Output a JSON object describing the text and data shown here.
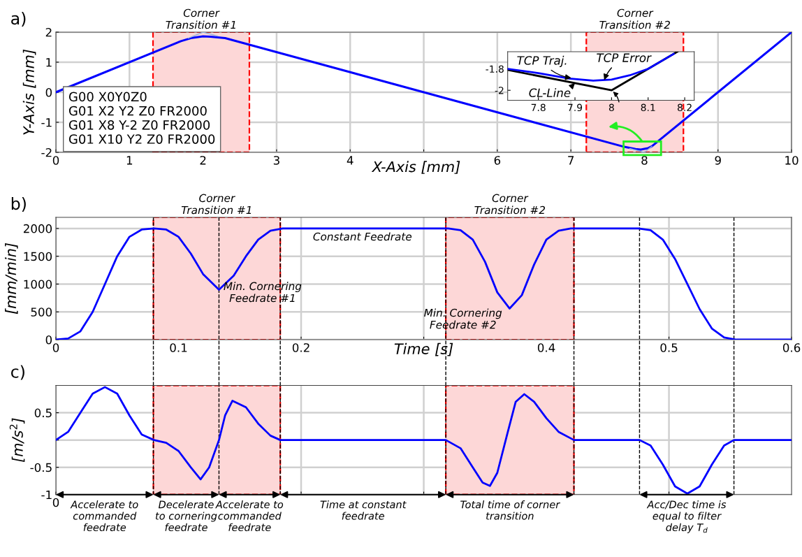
{
  "chart_data": [
    {
      "type": "line",
      "title": "a)",
      "xlabel": "X-Axis [mm]",
      "ylabel": "Y-Axis [mm]",
      "xlim": [
        0,
        10
      ],
      "ylim": [
        -2,
        2
      ],
      "xticks": [
        0,
        1,
        2,
        3,
        4,
        {
          "value": 5,
          "label": null
        },
        6,
        7,
        8,
        9,
        10
      ],
      "yticks": [
        -2,
        -1,
        0,
        1,
        2
      ],
      "grid": true,
      "series": [
        {
          "color": "#0000ff",
          "x": [
            0,
            1.7,
            1.85,
            2.0,
            2.1,
            2.3,
            7.7,
            7.88,
            7.95,
            8.05,
            8.1,
            10
          ],
          "values": [
            0,
            1.7,
            1.81,
            1.86,
            1.85,
            1.8,
            -1.8,
            -1.89,
            -1.91,
            -1.86,
            -1.8,
            2
          ]
        },
        {
          "color": "#8fb3e0",
          "x": [
            1.8,
            2,
            2.2,
            5,
            7.8,
            8,
            8.1
          ],
          "values": [
            1.8,
            2,
            1.87,
            null,
            -1.87,
            -2,
            -1.8
          ]
        }
      ],
      "bands": [
        {
          "axis": "x",
          "from": 1.32,
          "to": 2.63,
          "label": "Corner\nTransition #1",
          "color": "#fdd7d7"
        },
        {
          "axis": "x",
          "from": 7.21,
          "to": 8.53,
          "label": "Corner\nTransition #2",
          "color": "#fdd7d7"
        }
      ],
      "annotations": [
        "G00 X0Y0Z0\nG01 X2 Y2 Z0 FR2000\nG01 X8 Y-2 Z0 FR2000\nG01 X10 Y2 Z0 FR2000"
      ]
    },
    {
      "type": "line",
      "xlim": [
        7.716,
        8.226
      ],
      "ylim": [
        -2.093,
        -1.64
      ],
      "xticks": [
        7.8,
        7.9,
        8,
        8.1,
        8.2
      ],
      "yticks": [
        -2,
        -1.8
      ],
      "series": [
        {
          "color": "#000000",
          "x": [
            7.716,
            8.0,
            8.18
          ],
          "values": [
            -1.81,
            -2.0,
            -1.64
          ]
        },
        {
          "color": "#0000ff",
          "x": [
            7.716,
            7.8,
            7.884,
            7.95,
            8.0,
            8.05,
            8.1,
            8.17
          ],
          "values": [
            -1.8,
            -1.84,
            -1.89,
            -1.91,
            -1.9,
            -1.86,
            -1.8,
            -1.66
          ]
        }
      ],
      "annotations": [
        {
          "text": "TCP Traj.",
          "x": 7.89,
          "y": -1.885
        },
        {
          "text": "TCP Error",
          "x": 7.98,
          "y": -1.905
        },
        {
          "text": "CL-Line",
          "x": 7.9,
          "y": -1.933
        }
      ]
    },
    {
      "type": "line",
      "title": "b)",
      "xlabel": "Time [s]",
      "ylabel": "[mm/min]",
      "xlim": [
        0,
        0.6
      ],
      "ylim": [
        0,
        2200
      ],
      "xticks": [
        0,
        0.1,
        0.2,
        {
          "value": 0.3,
          "label": null
        },
        0.4,
        0.5,
        0.6
      ],
      "yticks": [
        0,
        500,
        1000,
        1500,
        2000
      ],
      "grid": true,
      "series": [
        {
          "color": "#0000ff",
          "x": [
            0,
            0.01,
            0.02,
            0.03,
            0.04,
            0.05,
            0.06,
            0.07,
            0.08,
            0.09,
            0.1,
            0.11,
            0.12,
            0.133,
            0.145,
            0.155,
            0.165,
            0.175,
            0.185,
            0.32,
            0.33,
            0.34,
            0.35,
            0.36,
            0.37,
            0.38,
            0.39,
            0.4,
            0.41,
            0.42,
            0.475,
            0.485,
            0.495,
            0.505,
            0.515,
            0.525,
            0.535,
            0.545,
            0.555,
            0.6
          ],
          "values": [
            0,
            20,
            150,
            500,
            1000,
            1500,
            1850,
            1980,
            2000,
            1980,
            1850,
            1550,
            1180,
            900,
            1150,
            1500,
            1800,
            1960,
            2000,
            2000,
            1970,
            1800,
            1400,
            850,
            560,
            800,
            1350,
            1800,
            1960,
            2000,
            2000,
            1970,
            1800,
            1450,
            1000,
            550,
            200,
            40,
            0,
            0
          ]
        }
      ],
      "bands": [
        {
          "axis": "x",
          "from": 0.0795,
          "to": 0.183,
          "label": "Corner\nTransition #1",
          "color": "#fdd7d7"
        },
        {
          "axis": "x",
          "from": 0.318,
          "to": 0.4225,
          "label": "Corner\nTransition #2",
          "color": "#fdd7d7"
        }
      ],
      "ref_lines": [
        {
          "axis": "x",
          "value": 0.0795,
          "color": "#000000",
          "line_style": "dashed"
        },
        {
          "axis": "x",
          "value": 0.133,
          "color": "#000000",
          "line_style": "dashed"
        },
        {
          "axis": "x",
          "value": 0.183,
          "color": "#000000",
          "line_style": "dashed"
        },
        {
          "axis": "x",
          "value": 0.318,
          "color": "#000000",
          "line_style": "dashed"
        },
        {
          "axis": "x",
          "value": 0.4225,
          "color": "#000000",
          "line_style": "dashed"
        },
        {
          "axis": "x",
          "value": 0.476,
          "color": "#000000",
          "line_style": "dashed"
        },
        {
          "axis": "x",
          "value": 0.553,
          "color": "#000000",
          "line_style": "dashed"
        }
      ],
      "annotations": [
        {
          "text": "Constant Feedrate",
          "x": 0.25,
          "y": 2000
        },
        {
          "text": "Min. Cornering\nFeedrate #1",
          "x": 0.133,
          "y": 900
        },
        {
          "text": "Min. Cornering\nFeedrate #2",
          "x": 0.37,
          "y": 560
        }
      ]
    },
    {
      "type": "line",
      "title": "c)",
      "ylabel": "[m/s$^{2}$]",
      "xlim": [
        0,
        0.6
      ],
      "ylim": [
        -1,
        1
      ],
      "xticks": [
        0,
        0.1,
        0.2,
        0.3,
        0.4,
        0.5
      ],
      "tick_labels": "y",
      "yticks": [
        -1,
        -0.5,
        {
          "value": 0,
          "label": null
        },
        0.5
      ],
      "grid": true,
      "series": [
        {
          "color": "#0000ff",
          "x": [
            0,
            0.01,
            0.02,
            0.03,
            0.04,
            0.05,
            0.06,
            0.07,
            0.08,
            0.09,
            0.1,
            0.11,
            0.118,
            0.125,
            0.133,
            0.138,
            0.144,
            0.155,
            0.165,
            0.175,
            0.183,
            0.318,
            0.33,
            0.34,
            0.348,
            0.354,
            0.36,
            0.368,
            0.375,
            0.382,
            0.39,
            0.4,
            0.41,
            0.4225,
            0.476,
            0.485,
            0.495,
            0.505,
            0.515,
            0.525,
            0.535,
            0.545,
            0.553,
            0.6
          ],
          "values": [
            0,
            0.15,
            0.5,
            0.85,
            0.97,
            0.85,
            0.45,
            0.1,
            0,
            -0.05,
            -0.2,
            -0.5,
            -0.72,
            -0.5,
            0,
            0.45,
            0.72,
            0.6,
            0.3,
            0.08,
            0,
            0,
            -0.15,
            -0.5,
            -0.78,
            -0.84,
            -0.6,
            0.1,
            0.7,
            0.84,
            0.7,
            0.4,
            0.15,
            0,
            0,
            -0.1,
            -0.45,
            -0.85,
            -0.98,
            -0.85,
            -0.45,
            -0.1,
            0,
            0
          ]
        }
      ],
      "bands": [
        {
          "axis": "x",
          "from": 0.0795,
          "to": 0.183,
          "color": "#fdd7d7"
        },
        {
          "axis": "x",
          "from": 0.318,
          "to": 0.4225,
          "color": "#fdd7d7"
        }
      ],
      "ref_lines": [
        {
          "axis": "x",
          "value": 0.0795,
          "color": "#000000",
          "line_style": "dashed"
        },
        {
          "axis": "x",
          "value": 0.133,
          "color": "#000000",
          "line_style": "dashed"
        },
        {
          "axis": "x",
          "value": 0.183,
          "color": "#000000",
          "line_style": "dashed"
        },
        {
          "axis": "x",
          "value": 0.318,
          "color": "#000000",
          "line_style": "dashed"
        },
        {
          "axis": "x",
          "value": 0.4225,
          "color": "#000000",
          "line_style": "dashed"
        },
        {
          "axis": "x",
          "value": 0.476,
          "color": "#000000",
          "line_style": "dashed"
        },
        {
          "axis": "x",
          "value": 0.553,
          "color": "#000000",
          "line_style": "dashed"
        }
      ],
      "annotations": [
        "0",
        "Accelerate to\ncommanded\nfeedrate",
        "Decelerate\nto cornering\nfeedrate",
        "Accelerate to\ncommanded\nfeedrate",
        "Time at constant\nfeedrate",
        "Total time of corner\ntransition",
        "Acc/Dec time is\nequal to filter\ndelay T$_{d}$"
      ]
    }
  ]
}
